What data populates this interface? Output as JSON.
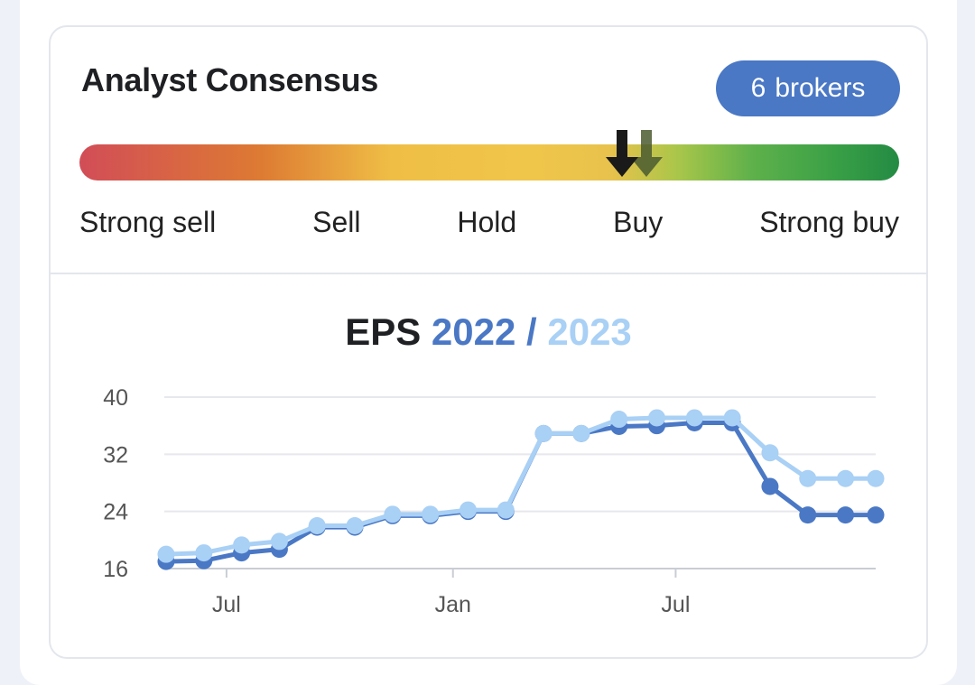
{
  "card": {
    "title": "Analyst Consensus",
    "badge_count": "6",
    "badge_label": "brokers"
  },
  "gauge": {
    "labels": [
      "Strong sell",
      "Sell",
      "Hold",
      "Buy",
      "Strong buy"
    ],
    "current_rating_fraction": 0.662,
    "previous_rating_fraction": 0.692,
    "current_marker_color": "#1a1a1a",
    "previous_marker_color": "#4a5a30"
  },
  "eps": {
    "title_prefix": "EPS",
    "year1": "2022",
    "separator": "/",
    "year2": "2023"
  },
  "chart_data": {
    "type": "line",
    "title": "",
    "ylim": [
      16,
      40
    ],
    "yticks": [
      16,
      24,
      32,
      40
    ],
    "x_tick_labels": [
      {
        "label": "Jul",
        "index": 1.6
      },
      {
        "label": "Jan",
        "index": 7.6
      },
      {
        "label": "Jul",
        "index": 13.5
      }
    ],
    "x": [
      0,
      1,
      2,
      3,
      4,
      5,
      6,
      7,
      8,
      9,
      10,
      11,
      12,
      13,
      14,
      15,
      16,
      17,
      18,
      18.8
    ],
    "series": [
      {
        "name": "2022",
        "color": "#4a78c5",
        "values": [
          17.0,
          17.1,
          18.2,
          18.7,
          21.8,
          21.8,
          23.4,
          23.4,
          24.0,
          24.0,
          34.9,
          34.9,
          35.9,
          36.0,
          36.4,
          36.4,
          27.5,
          23.5,
          23.5,
          23.5
        ]
      },
      {
        "name": "2023",
        "color": "#a9d0f5",
        "values": [
          18.0,
          18.2,
          19.3,
          19.8,
          22.0,
          22.0,
          23.6,
          23.6,
          24.2,
          24.2,
          34.9,
          34.9,
          36.9,
          37.1,
          37.1,
          37.1,
          32.2,
          28.6,
          28.6,
          28.6
        ]
      }
    ],
    "grid": true
  }
}
